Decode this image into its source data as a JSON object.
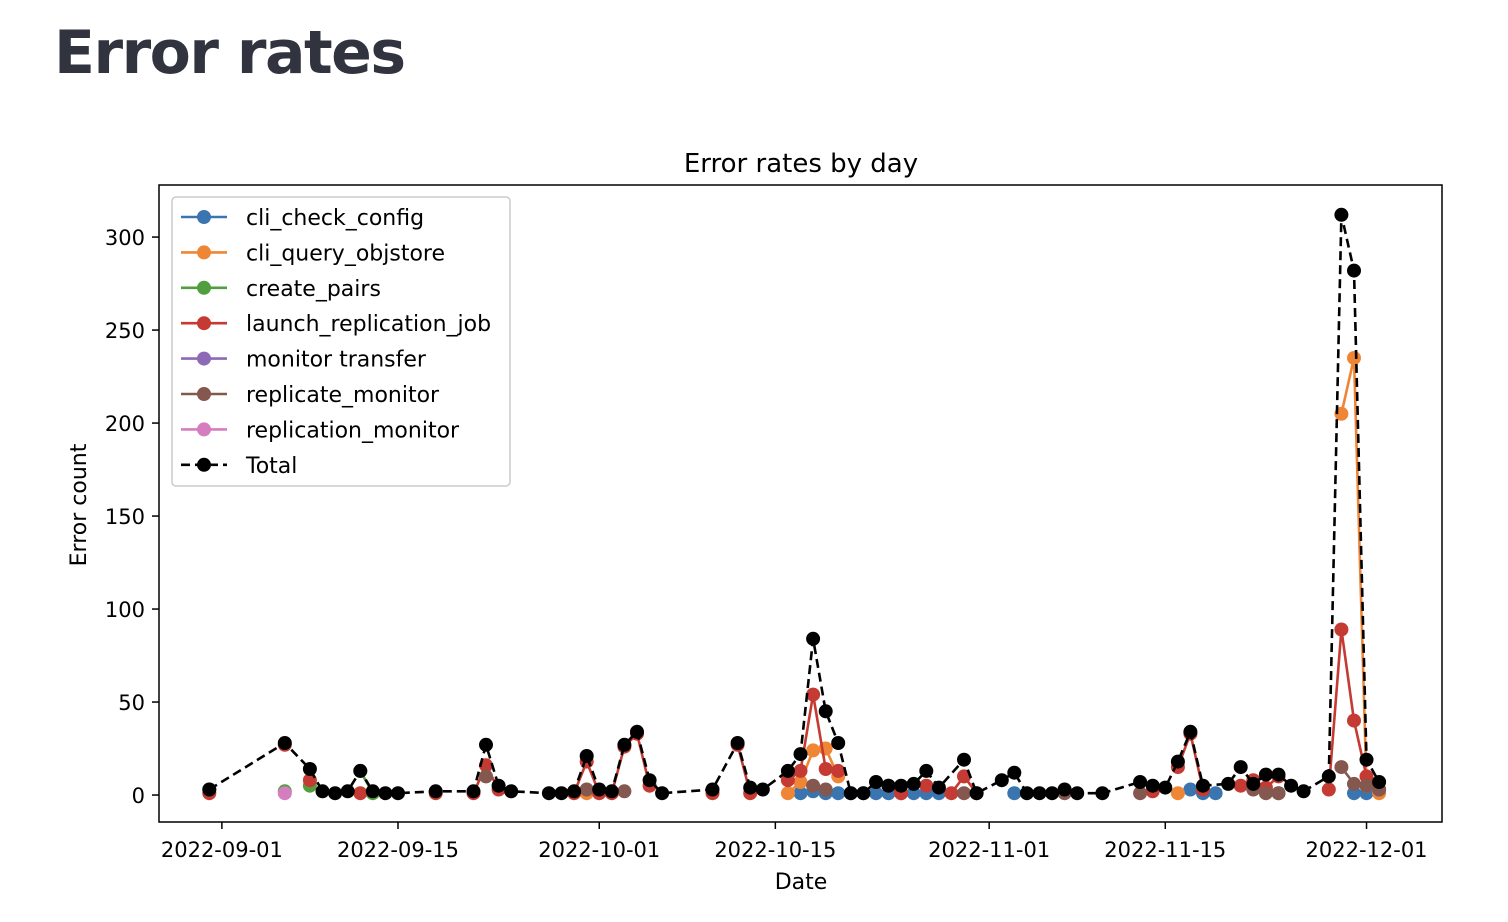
{
  "page": {
    "heading": "Error rates"
  },
  "chart_data": {
    "type": "line",
    "title": "Error rates by day",
    "xlabel": "Date",
    "ylabel": "Error count",
    "xlim": [
      "2022-08-27",
      "2022-12-07"
    ],
    "ylim": [
      -14.5,
      328
    ],
    "x_ticks": [
      "2022-09-01",
      "2022-09-15",
      "2022-10-01",
      "2022-10-15",
      "2022-11-01",
      "2022-11-15",
      "2022-12-01"
    ],
    "y_ticks": [
      0,
      50,
      100,
      150,
      200,
      250,
      300
    ],
    "grid": false,
    "legend_position": "top-left",
    "series": [
      {
        "name": "cli_check_config",
        "color": "#3a75b0",
        "style": "solid",
        "points": [
          [
            "2022-10-17",
            1
          ],
          [
            "2022-10-18",
            2
          ],
          [
            "2022-10-19",
            1
          ],
          [
            "2022-10-20",
            1
          ],
          [
            "2022-10-21",
            1
          ],
          [
            "2022-10-22",
            1
          ],
          [
            "2022-10-23",
            1
          ],
          [
            "2022-10-24",
            1
          ],
          [
            "2022-10-25",
            1
          ],
          [
            "2022-10-26",
            1
          ],
          [
            "2022-10-27",
            1
          ],
          [
            "2022-10-28",
            1
          ],
          [
            "2022-11-03",
            1
          ],
          [
            "2022-11-17",
            3
          ],
          [
            "2022-11-18",
            1
          ],
          [
            "2022-11-19",
            1
          ],
          [
            "2022-11-24",
            1
          ],
          [
            "2022-11-30",
            1
          ],
          [
            "2022-12-01",
            1
          ]
        ]
      },
      {
        "name": "cli_query_objstore",
        "color": "#ef8636",
        "style": "solid",
        "points": [
          [
            "2022-09-30",
            1
          ],
          [
            "2022-10-16",
            1
          ],
          [
            "2022-10-17",
            7
          ],
          [
            "2022-10-18",
            24
          ],
          [
            "2022-10-19",
            25
          ],
          [
            "2022-10-20",
            10
          ],
          [
            "2022-11-16",
            1
          ],
          [
            "2022-11-29",
            205
          ],
          [
            "2022-11-30",
            235
          ],
          [
            "2022-12-01",
            5
          ],
          [
            "2022-12-02",
            1
          ]
        ]
      },
      {
        "name": "create_pairs",
        "color": "#519e3e",
        "style": "solid",
        "points": [
          [
            "2022-08-31",
            3
          ],
          [
            "2022-09-06",
            2
          ],
          [
            "2022-09-08",
            5
          ],
          [
            "2022-09-12",
            13
          ],
          [
            "2022-09-13",
            1
          ]
        ]
      },
      {
        "name": "launch_replication_job",
        "color": "#c53a32",
        "style": "solid",
        "points": [
          [
            "2022-08-31",
            1
          ],
          [
            "2022-09-06",
            27
          ],
          [
            "2022-09-08",
            8
          ],
          [
            "2022-09-12",
            1
          ],
          [
            "2022-09-18",
            1
          ],
          [
            "2022-09-21",
            1
          ],
          [
            "2022-09-22",
            16
          ],
          [
            "2022-09-23",
            3
          ],
          [
            "2022-09-29",
            1
          ],
          [
            "2022-09-30",
            18
          ],
          [
            "2022-10-01",
            1
          ],
          [
            "2022-10-02",
            1
          ],
          [
            "2022-10-03",
            26
          ],
          [
            "2022-10-04",
            33
          ],
          [
            "2022-10-05",
            5
          ],
          [
            "2022-10-10",
            1
          ],
          [
            "2022-10-12",
            27
          ],
          [
            "2022-10-13",
            1
          ],
          [
            "2022-10-16",
            8
          ],
          [
            "2022-10-17",
            13
          ],
          [
            "2022-10-18",
            54
          ],
          [
            "2022-10-19",
            14
          ],
          [
            "2022-10-20",
            13
          ],
          [
            "2022-10-24",
            5
          ],
          [
            "2022-10-25",
            1
          ],
          [
            "2022-10-27",
            5
          ],
          [
            "2022-10-29",
            1
          ],
          [
            "2022-10-30",
            10
          ],
          [
            "2022-10-31",
            1
          ],
          [
            "2022-11-14",
            2
          ],
          [
            "2022-11-16",
            15
          ],
          [
            "2022-11-17",
            33
          ],
          [
            "2022-11-18",
            3
          ],
          [
            "2022-11-21",
            5
          ],
          [
            "2022-11-22",
            8
          ],
          [
            "2022-11-23",
            4
          ],
          [
            "2022-11-24",
            10
          ],
          [
            "2022-11-28",
            3
          ],
          [
            "2022-11-29",
            89
          ],
          [
            "2022-11-30",
            40
          ],
          [
            "2022-12-01",
            10
          ],
          [
            "2022-12-02",
            3
          ]
        ]
      },
      {
        "name": "monitor transfer",
        "color": "#8d69b8",
        "style": "solid",
        "points": []
      },
      {
        "name": "replicate_monitor",
        "color": "#84584e",
        "style": "solid",
        "points": [
          [
            "2022-09-22",
            10
          ],
          [
            "2022-09-30",
            3
          ],
          [
            "2022-10-03",
            2
          ],
          [
            "2022-10-18",
            5
          ],
          [
            "2022-10-19",
            3
          ],
          [
            "2022-10-30",
            1
          ],
          [
            "2022-11-07",
            1
          ],
          [
            "2022-11-13",
            1
          ],
          [
            "2022-11-22",
            3
          ],
          [
            "2022-11-23",
            1
          ],
          [
            "2022-11-24",
            1
          ],
          [
            "2022-11-29",
            15
          ],
          [
            "2022-11-30",
            6
          ],
          [
            "2022-12-01",
            5
          ],
          [
            "2022-12-02",
            3
          ]
        ]
      },
      {
        "name": "replication_monitor",
        "color": "#d57dbf",
        "style": "solid",
        "points": [
          [
            "2022-09-06",
            1
          ]
        ]
      },
      {
        "name": "Total",
        "color": "#000000",
        "style": "dashed",
        "points": [
          [
            "2022-08-31",
            3
          ],
          [
            "2022-09-06",
            28
          ],
          [
            "2022-09-08",
            14
          ],
          [
            "2022-09-09",
            2
          ],
          [
            "2022-09-10",
            1
          ],
          [
            "2022-09-11",
            2
          ],
          [
            "2022-09-12",
            13
          ],
          [
            "2022-09-13",
            2
          ],
          [
            "2022-09-14",
            1
          ],
          [
            "2022-09-15",
            1
          ],
          [
            "2022-09-18",
            2
          ],
          [
            "2022-09-21",
            2
          ],
          [
            "2022-09-22",
            27
          ],
          [
            "2022-09-23",
            5
          ],
          [
            "2022-09-24",
            2
          ],
          [
            "2022-09-27",
            1
          ],
          [
            "2022-09-28",
            1
          ],
          [
            "2022-09-29",
            2
          ],
          [
            "2022-09-30",
            21
          ],
          [
            "2022-10-01",
            3
          ],
          [
            "2022-10-02",
            2
          ],
          [
            "2022-10-03",
            27
          ],
          [
            "2022-10-04",
            34
          ],
          [
            "2022-10-05",
            8
          ],
          [
            "2022-10-06",
            1
          ],
          [
            "2022-10-10",
            3
          ],
          [
            "2022-10-12",
            28
          ],
          [
            "2022-10-13",
            4
          ],
          [
            "2022-10-14",
            3
          ],
          [
            "2022-10-16",
            13
          ],
          [
            "2022-10-17",
            22
          ],
          [
            "2022-10-18",
            84
          ],
          [
            "2022-10-19",
            45
          ],
          [
            "2022-10-20",
            28
          ],
          [
            "2022-10-21",
            1
          ],
          [
            "2022-10-22",
            1
          ],
          [
            "2022-10-23",
            7
          ],
          [
            "2022-10-24",
            5
          ],
          [
            "2022-10-25",
            5
          ],
          [
            "2022-10-26",
            6
          ],
          [
            "2022-10-27",
            13
          ],
          [
            "2022-10-28",
            4
          ],
          [
            "2022-10-30",
            19
          ],
          [
            "2022-10-31",
            1
          ],
          [
            "2022-11-02",
            8
          ],
          [
            "2022-11-03",
            12
          ],
          [
            "2022-11-04",
            1
          ],
          [
            "2022-11-05",
            1
          ],
          [
            "2022-11-06",
            1
          ],
          [
            "2022-11-07",
            3
          ],
          [
            "2022-11-08",
            1
          ],
          [
            "2022-11-10",
            1
          ],
          [
            "2022-11-13",
            7
          ],
          [
            "2022-11-14",
            5
          ],
          [
            "2022-11-15",
            4
          ],
          [
            "2022-11-16",
            18
          ],
          [
            "2022-11-17",
            34
          ],
          [
            "2022-11-18",
            5
          ],
          [
            "2022-11-20",
            6
          ],
          [
            "2022-11-21",
            15
          ],
          [
            "2022-11-22",
            6
          ],
          [
            "2022-11-23",
            11
          ],
          [
            "2022-11-24",
            11
          ],
          [
            "2022-11-25",
            5
          ],
          [
            "2022-11-26",
            2
          ],
          [
            "2022-11-28",
            10
          ],
          [
            "2022-11-29",
            312
          ],
          [
            "2022-11-30",
            282
          ],
          [
            "2022-12-01",
            19
          ],
          [
            "2022-12-02",
            7
          ]
        ]
      }
    ]
  }
}
